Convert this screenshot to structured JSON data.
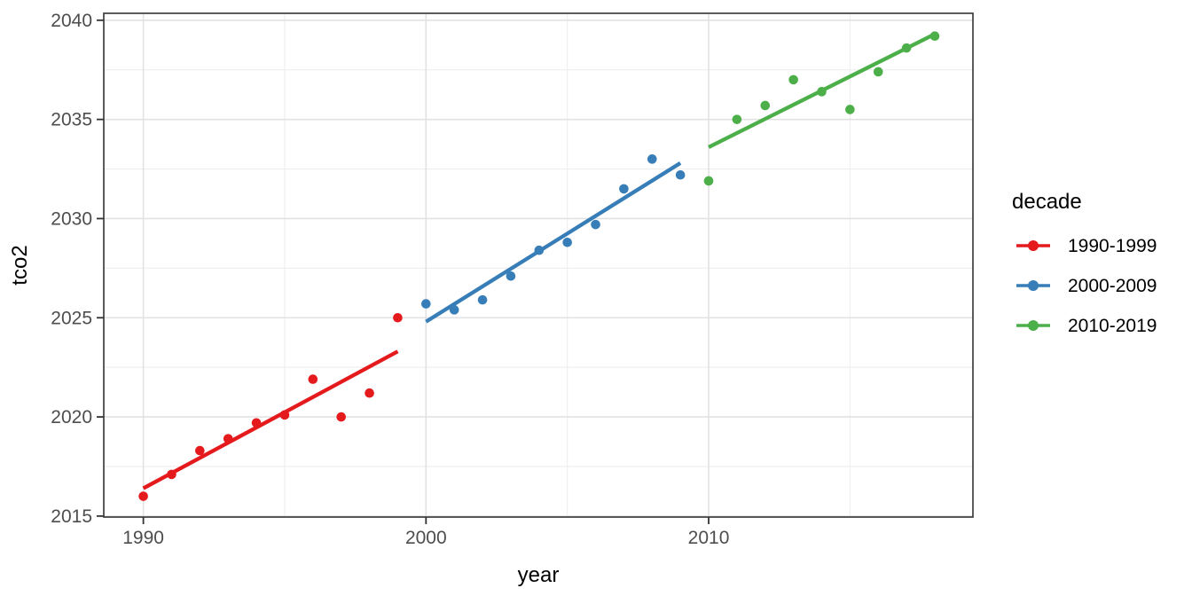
{
  "chart_data": {
    "type": "scatter",
    "title": "",
    "xlabel": "year",
    "ylabel": "tco2",
    "x_range": [
      1988.6,
      2019.35
    ],
    "y_range": [
      2014.95,
      2040.35
    ],
    "x_ticks": [
      1990,
      2000,
      2010
    ],
    "x_minor_ticks": [
      1995,
      2005,
      2015
    ],
    "y_ticks": [
      2015,
      2020,
      2025,
      2030,
      2035,
      2040
    ],
    "y_minor_ticks": [
      2017.5,
      2022.5,
      2027.5,
      2032.5,
      2037.5
    ],
    "grid": "major+minor",
    "legend": {
      "title": "decade",
      "position": "right"
    },
    "series": [
      {
        "name": "1990-1999",
        "color": "#E41A1C",
        "x": [
          1990,
          1991,
          1992,
          1993,
          1994,
          1995,
          1996,
          1997,
          1998,
          1999
        ],
        "y": [
          2016.0,
          2017.1,
          2018.3,
          2018.9,
          2019.7,
          2020.1,
          2021.9,
          2020.0,
          2021.2,
          2025.0
        ],
        "trend": {
          "x": [
            1990,
            1999
          ],
          "y": [
            2016.4,
            2023.3
          ]
        }
      },
      {
        "name": "2000-2009",
        "color": "#377EB8",
        "x": [
          2000,
          2001,
          2002,
          2003,
          2004,
          2005,
          2006,
          2007,
          2008,
          2009
        ],
        "y": [
          2025.7,
          2025.4,
          2025.9,
          2027.1,
          2028.4,
          2028.8,
          2029.7,
          2031.5,
          2033.0,
          2032.2
        ],
        "trend": {
          "x": [
            2000,
            2009
          ],
          "y": [
            2024.8,
            2032.8
          ]
        }
      },
      {
        "name": "2010-2019",
        "color": "#4DAF4A",
        "x": [
          2010,
          2011,
          2012,
          2013,
          2014,
          2015,
          2016,
          2017,
          2018
        ],
        "y": [
          2031.9,
          2035.0,
          2035.7,
          2037.0,
          2036.4,
          2035.5,
          2037.4,
          2038.6,
          2039.2
        ],
        "trend": {
          "x": [
            2010,
            2018
          ],
          "y": [
            2033.6,
            2039.3
          ]
        }
      }
    ]
  }
}
